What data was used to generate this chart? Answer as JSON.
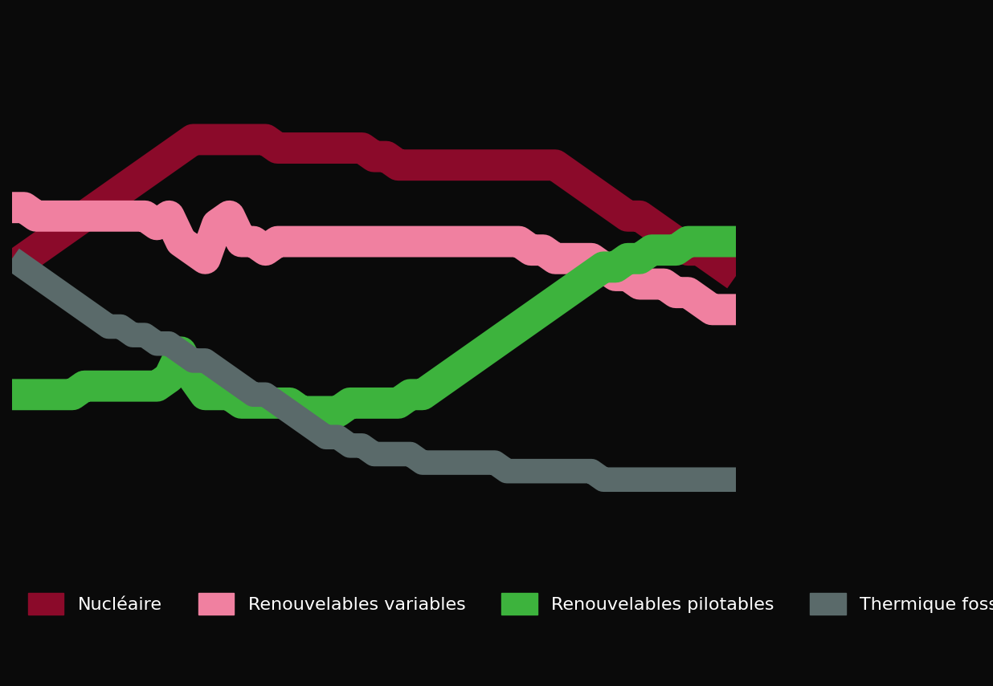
{
  "background_color": "#0a0a0a",
  "text_color": "#ffffff",
  "series": {
    "dark_red": {
      "label": "Nucléaire",
      "color": "#8B0A2A",
      "linewidth": 28,
      "x": [
        1990,
        1991,
        1992,
        1993,
        1994,
        1995,
        1996,
        1997,
        1998,
        1999,
        2000,
        2001,
        2002,
        2003,
        2004,
        2005,
        2006,
        2007,
        2008,
        2009,
        2010,
        2011,
        2012,
        2013,
        2014,
        2015,
        2016,
        2017,
        2018,
        2019,
        2020,
        2021,
        2022,
        2023,
        2024,
        2025,
        2026,
        2027,
        2028,
        2029,
        2030,
        2031,
        2032,
        2033,
        2034,
        2035,
        2036,
        2037,
        2038,
        2039,
        2040,
        2041,
        2042,
        2043,
        2044,
        2045,
        2046,
        2047,
        2048,
        2049,
        2050
      ],
      "y": [
        0.35,
        0.36,
        0.37,
        0.38,
        0.39,
        0.4,
        0.41,
        0.42,
        0.43,
        0.44,
        0.45,
        0.46,
        0.47,
        0.48,
        0.49,
        0.5,
        0.5,
        0.5,
        0.5,
        0.5,
        0.5,
        0.5,
        0.49,
        0.49,
        0.49,
        0.49,
        0.49,
        0.49,
        0.49,
        0.49,
        0.48,
        0.48,
        0.47,
        0.47,
        0.47,
        0.47,
        0.47,
        0.47,
        0.47,
        0.47,
        0.47,
        0.47,
        0.47,
        0.47,
        0.47,
        0.47,
        0.46,
        0.45,
        0.44,
        0.43,
        0.42,
        0.41,
        0.41,
        0.4,
        0.39,
        0.38,
        0.37,
        0.37,
        0.36,
        0.35,
        0.34
      ]
    },
    "pink": {
      "label": "Renouvelables variables",
      "color": "#F080A0",
      "linewidth": 28,
      "x": [
        1990,
        1991,
        1992,
        1993,
        1994,
        1995,
        1996,
        1997,
        1998,
        1999,
        2000,
        2001,
        2002,
        2003,
        2004,
        2005,
        2006,
        2007,
        2008,
        2009,
        2010,
        2011,
        2012,
        2013,
        2014,
        2015,
        2016,
        2017,
        2018,
        2019,
        2020,
        2021,
        2022,
        2023,
        2024,
        2025,
        2026,
        2027,
        2028,
        2029,
        2030,
        2031,
        2032,
        2033,
        2034,
        2035,
        2036,
        2037,
        2038,
        2039,
        2040,
        2041,
        2042,
        2043,
        2044,
        2045,
        2046,
        2047,
        2048,
        2049,
        2050
      ],
      "y": [
        0.42,
        0.42,
        0.41,
        0.41,
        0.41,
        0.41,
        0.41,
        0.41,
        0.41,
        0.41,
        0.41,
        0.41,
        0.4,
        0.41,
        0.38,
        0.37,
        0.36,
        0.4,
        0.41,
        0.38,
        0.38,
        0.37,
        0.38,
        0.38,
        0.38,
        0.38,
        0.38,
        0.38,
        0.38,
        0.38,
        0.38,
        0.38,
        0.38,
        0.38,
        0.38,
        0.38,
        0.38,
        0.38,
        0.38,
        0.38,
        0.38,
        0.38,
        0.38,
        0.37,
        0.37,
        0.36,
        0.36,
        0.36,
        0.36,
        0.35,
        0.34,
        0.34,
        0.33,
        0.33,
        0.33,
        0.32,
        0.32,
        0.31,
        0.3,
        0.3,
        0.3
      ]
    },
    "green": {
      "label": "Renouvelables pilotables",
      "color": "#3DB33D",
      "linewidth": 28,
      "x": [
        1990,
        1991,
        1992,
        1993,
        1994,
        1995,
        1996,
        1997,
        1998,
        1999,
        2000,
        2001,
        2002,
        2003,
        2004,
        2005,
        2006,
        2007,
        2008,
        2009,
        2010,
        2011,
        2012,
        2013,
        2014,
        2015,
        2016,
        2017,
        2018,
        2019,
        2020,
        2021,
        2022,
        2023,
        2024,
        2025,
        2026,
        2027,
        2028,
        2029,
        2030,
        2031,
        2032,
        2033,
        2034,
        2035,
        2036,
        2037,
        2038,
        2039,
        2040,
        2041,
        2042,
        2043,
        2044,
        2045,
        2046,
        2047,
        2048,
        2049,
        2050
      ],
      "y": [
        0.2,
        0.2,
        0.2,
        0.2,
        0.2,
        0.2,
        0.21,
        0.21,
        0.21,
        0.21,
        0.21,
        0.21,
        0.21,
        0.22,
        0.25,
        0.22,
        0.2,
        0.2,
        0.2,
        0.19,
        0.19,
        0.19,
        0.19,
        0.19,
        0.18,
        0.18,
        0.18,
        0.18,
        0.19,
        0.19,
        0.19,
        0.19,
        0.19,
        0.2,
        0.2,
        0.21,
        0.22,
        0.23,
        0.24,
        0.25,
        0.26,
        0.27,
        0.28,
        0.29,
        0.3,
        0.31,
        0.32,
        0.33,
        0.34,
        0.35,
        0.35,
        0.36,
        0.36,
        0.37,
        0.37,
        0.37,
        0.38,
        0.38,
        0.38,
        0.38,
        0.38
      ]
    },
    "gray": {
      "label": "Thermique fossile",
      "color": "#5A6A6A",
      "linewidth": 22,
      "x": [
        1990,
        1991,
        1992,
        1993,
        1994,
        1995,
        1996,
        1997,
        1998,
        1999,
        2000,
        2001,
        2002,
        2003,
        2004,
        2005,
        2006,
        2007,
        2008,
        2009,
        2010,
        2011,
        2012,
        2013,
        2014,
        2015,
        2016,
        2017,
        2018,
        2019,
        2020,
        2021,
        2022,
        2023,
        2024,
        2025,
        2026,
        2027,
        2028,
        2029,
        2030,
        2031,
        2032,
        2033,
        2034,
        2035,
        2036,
        2037,
        2038,
        2039,
        2040,
        2041,
        2042,
        2043,
        2044,
        2045,
        2046,
        2047,
        2048,
        2049,
        2050
      ],
      "y": [
        0.36,
        0.35,
        0.34,
        0.33,
        0.32,
        0.31,
        0.3,
        0.29,
        0.28,
        0.28,
        0.27,
        0.27,
        0.26,
        0.26,
        0.25,
        0.24,
        0.24,
        0.23,
        0.22,
        0.21,
        0.2,
        0.2,
        0.19,
        0.18,
        0.17,
        0.16,
        0.15,
        0.15,
        0.14,
        0.14,
        0.13,
        0.13,
        0.13,
        0.13,
        0.12,
        0.12,
        0.12,
        0.12,
        0.12,
        0.12,
        0.12,
        0.11,
        0.11,
        0.11,
        0.11,
        0.11,
        0.11,
        0.11,
        0.11,
        0.1,
        0.1,
        0.1,
        0.1,
        0.1,
        0.1,
        0.1,
        0.1,
        0.1,
        0.1,
        0.1,
        0.1
      ]
    }
  },
  "xlim": [
    1990,
    2050
  ],
  "ylim": [
    0.0,
    0.65
  ],
  "legend": {
    "labels": [
      "Nucléaire",
      "Renouvelables variables",
      "Renouvelables pilotables",
      "Thermique fossile"
    ],
    "colors": [
      "#8B0A2A",
      "#F080A0",
      "#3DB33D",
      "#5A6A6A"
    ]
  }
}
